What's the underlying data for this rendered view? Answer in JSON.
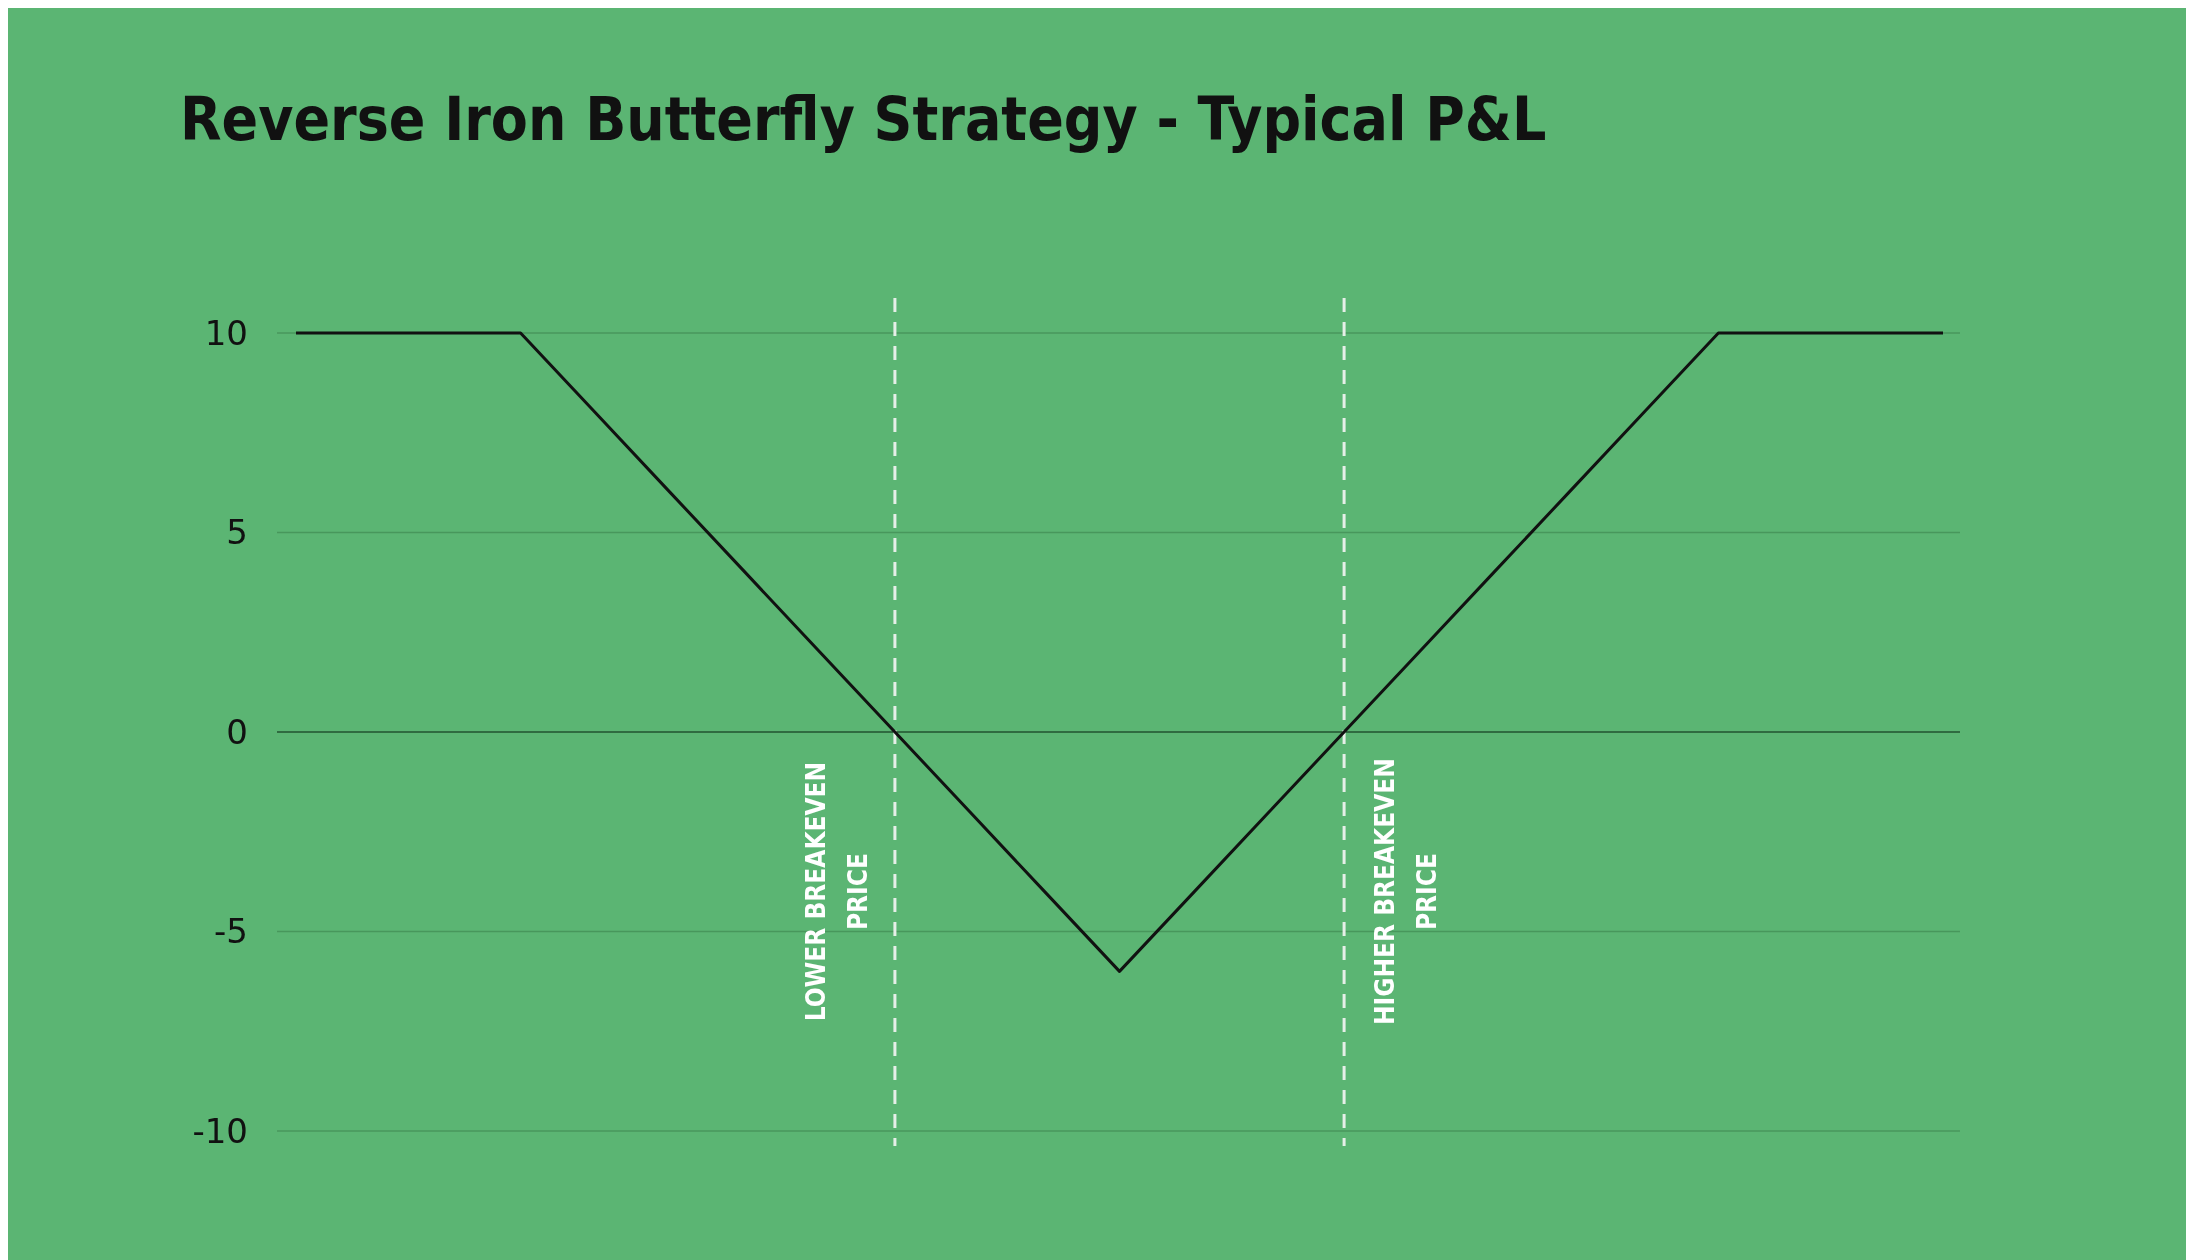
{
  "chart_data": {
    "type": "line",
    "title": "Reverse Iron Butterfly Strategy - Typical P&L",
    "categories": [
      null,
      null,
      null,
      null,
      null,
      null,
      null,
      null,
      null,
      null,
      null,
      null,
      null,
      null,
      null,
      null,
      null,
      null,
      null,
      null,
      null,
      null,
      null
    ],
    "series": [
      {
        "color": "#111111",
        "values": [
          10,
          10,
          10,
          10,
          8,
          6,
          4,
          2,
          0,
          -2,
          -4,
          -6,
          -4,
          -2,
          0,
          2,
          4,
          6,
          8,
          10,
          10,
          10,
          10
        ]
      }
    ],
    "ylim": [
      -10,
      10
    ],
    "yticks": [
      -10,
      -5,
      0,
      5,
      10
    ],
    "grid": "y",
    "tick_labels": "y",
    "marker": "none",
    "line_style": "solid",
    "ref_lines": [
      {
        "axis": "y",
        "value": 0,
        "color": "#2f6b40",
        "line_style": "solid"
      }
    ],
    "annotations": [
      "LOWER BREAKEVEN PRICE",
      "HIGHER BREAKEVEN PRICE"
    ]
  }
}
